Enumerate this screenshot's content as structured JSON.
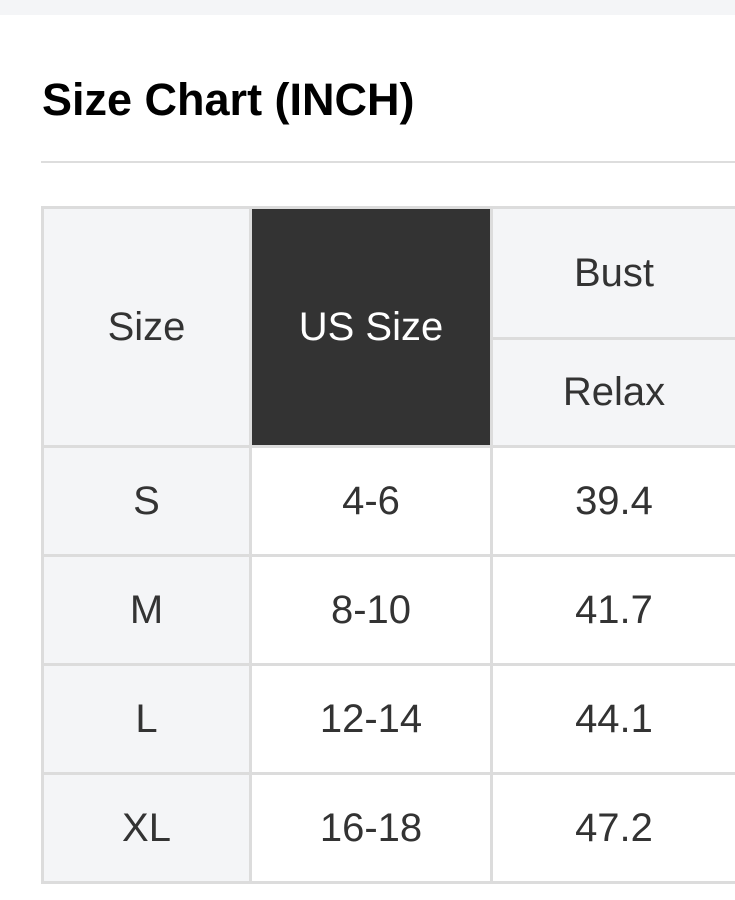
{
  "title": "Size Chart (INCH)",
  "table": {
    "headers": {
      "size": "Size",
      "us_size": "US Size",
      "bust": "Bust",
      "relax": "Relax"
    },
    "rows": [
      {
        "size": "S",
        "us_size": "4-6",
        "bust_relax": "39.4"
      },
      {
        "size": "M",
        "us_size": "8-10",
        "bust_relax": "41.7"
      },
      {
        "size": "L",
        "us_size": "12-14",
        "bust_relax": "44.1"
      },
      {
        "size": "XL",
        "us_size": "16-18",
        "bust_relax": "47.2"
      }
    ]
  },
  "colors": {
    "header_bg": "#f4f5f7",
    "highlight_header_bg": "#333333",
    "border": "#dcdcdc"
  }
}
